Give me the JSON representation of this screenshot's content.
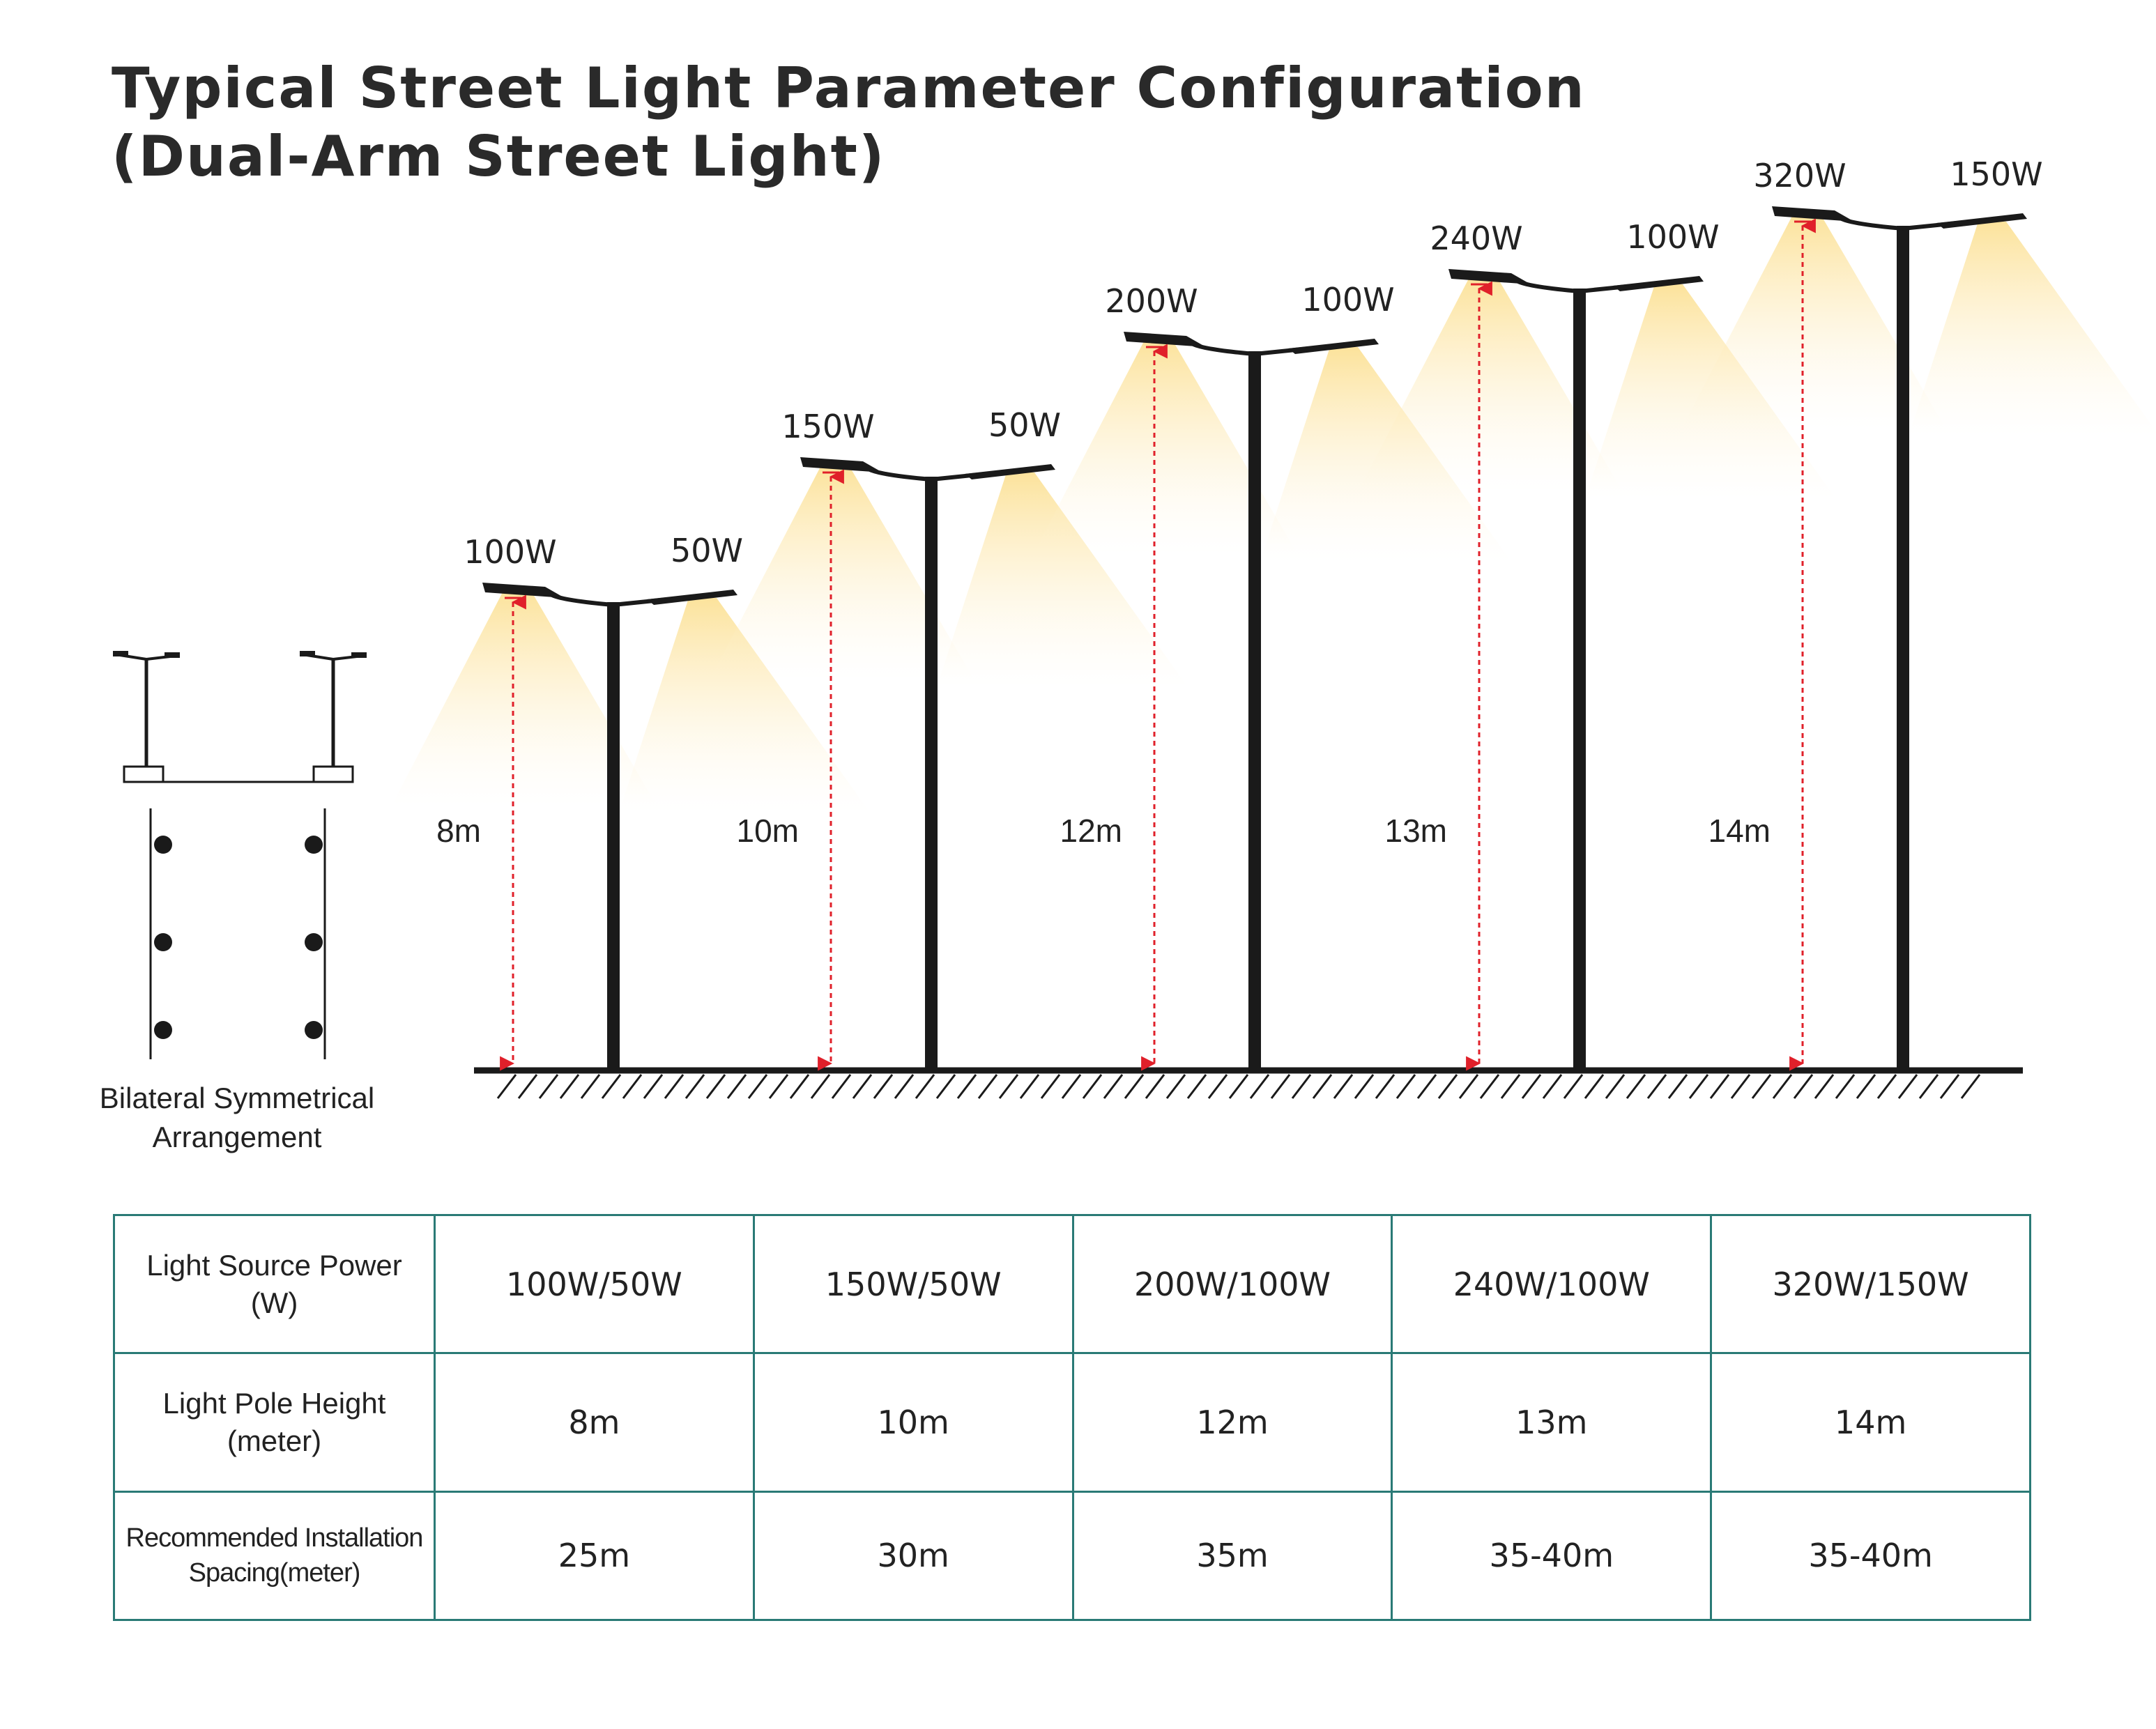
{
  "title": {
    "line1": "Typical Street Light Parameter Configuration",
    "line2": "(Dual-Arm Street Light)"
  },
  "arrangement": {
    "caption_line1": "Bilateral Symmetrical",
    "caption_line2": "Arrangement"
  },
  "poles": [
    {
      "main_power": "100W",
      "secondary_power": "50W",
      "height_label": "8m",
      "height": 8
    },
    {
      "main_power": "150W",
      "secondary_power": "50W",
      "height_label": "10m",
      "height": 10
    },
    {
      "main_power": "200W",
      "secondary_power": "100W",
      "height_label": "12m",
      "height": 12
    },
    {
      "main_power": "240W",
      "secondary_power": "100W",
      "height_label": "13m",
      "height": 13
    },
    {
      "main_power": "320W",
      "secondary_power": "150W",
      "height_label": "14m",
      "height": 14
    }
  ],
  "table": {
    "rows": [
      {
        "header": [
          "Light Source Power",
          "(W)"
        ],
        "cells": [
          "100W/50W",
          "150W/50W",
          "200W/100W",
          "240W/100W",
          "320W/150W"
        ]
      },
      {
        "header": [
          "Light Pole Height",
          "(meter)"
        ],
        "cells": [
          "8m",
          "10m",
          "12m",
          "13m",
          "14m"
        ]
      },
      {
        "header": [
          "Recommended Installation",
          "Spacing(meter)"
        ],
        "cells": [
          "25m",
          "30m",
          "35m",
          "35-40m",
          "35-40m"
        ]
      }
    ]
  },
  "colors": {
    "pole": "#1a1a1a",
    "dimension": "#e0202a",
    "beam": "#fde7a8",
    "table_border": "#2a7a76"
  }
}
